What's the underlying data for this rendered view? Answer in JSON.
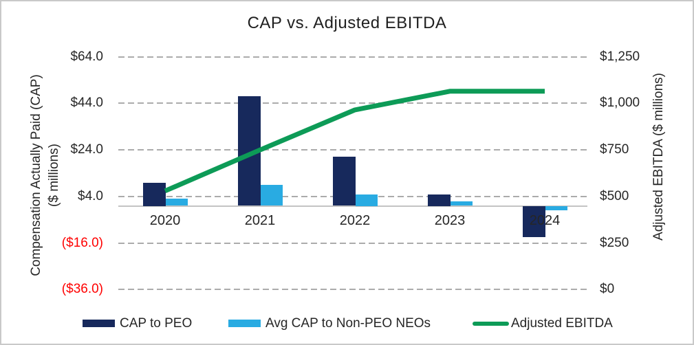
{
  "title": "CAP vs. Adjusted EBITDA",
  "colors": {
    "cap_peo": "#17295c",
    "cap_non_peo": "#29abe2",
    "ebitda_line": "#0d9b57",
    "negative_tick": "#ff0000",
    "tick_text": "#262626",
    "gridline": "#ababab",
    "axis_line": "#c3c3c3"
  },
  "chart_data": {
    "type": "combo",
    "title": "CAP vs. Adjusted EBITDA",
    "categories": [
      "2020",
      "2021",
      "2022",
      "2023",
      "2024"
    ],
    "series": [
      {
        "name": "CAP to PEO",
        "type": "bar",
        "axis": "left",
        "color_key": "cap_peo",
        "values": [
          10,
          47,
          21,
          5,
          -13.5
        ]
      },
      {
        "name": "Avg CAP to Non-PEO NEOs",
        "type": "bar",
        "axis": "left",
        "color_key": "cap_non_peo",
        "values": [
          3,
          9,
          5,
          2,
          -2
        ]
      },
      {
        "name": "Adjusted EBITDA",
        "type": "line",
        "axis": "right",
        "color_key": "ebitda_line",
        "values": [
          530,
          750,
          965,
          1065,
          1065
        ]
      }
    ],
    "left_axis": {
      "label_line1": "Compensation Actually Paid (CAP)",
      "label_line2": "($ millions)",
      "range": [
        -36,
        64
      ],
      "ticks": [
        {
          "label": "$64.0",
          "value": 64,
          "negative": false
        },
        {
          "label": "$44.0",
          "value": 44,
          "negative": false
        },
        {
          "label": "$24.0",
          "value": 24,
          "negative": false
        },
        {
          "label": "$4.0",
          "value": 4,
          "negative": false
        },
        {
          "label": "($16.0)",
          "value": -16,
          "negative": true
        },
        {
          "label": "($36.0)",
          "value": -36,
          "negative": true
        }
      ]
    },
    "right_axis": {
      "label": "Adjusted EBITDA ($ millions)",
      "range": [
        0,
        1250
      ],
      "ticks": [
        {
          "label": "$1,250",
          "value": 1250
        },
        {
          "label": "$1,000",
          "value": 1000
        },
        {
          "label": "$750",
          "value": 750
        },
        {
          "label": "$500",
          "value": 500
        },
        {
          "label": "$250",
          "value": 250
        },
        {
          "label": "$0",
          "value": 0
        }
      ]
    },
    "grid": "dashed-horizontal",
    "legend_position": "bottom",
    "legend": [
      {
        "label": "CAP to PEO",
        "marker": "bar",
        "color_key": "cap_peo"
      },
      {
        "label": "Avg CAP to Non-PEO NEOs",
        "marker": "bar",
        "color_key": "cap_non_peo"
      },
      {
        "label": "Adjusted EBITDA",
        "marker": "line",
        "color_key": "ebitda_line"
      }
    ]
  }
}
